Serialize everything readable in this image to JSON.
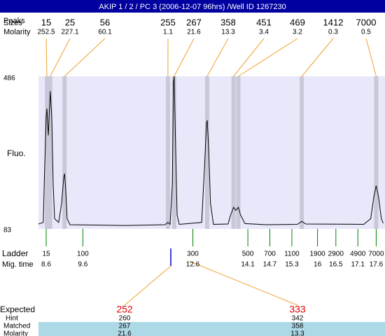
{
  "title": "AKIP 1 / 2 / PC 3 (2006-12-07 96hrs) /Well ID 1267230",
  "chart_data": {
    "type": "line",
    "color": "#000000",
    "x": [
      8.39,
      8.52,
      8.56,
      8.6,
      8.62,
      8.64,
      8.66,
      8.7,
      8.71,
      8.75,
      8.79,
      8.83,
      8.94,
      9.02,
      9.08,
      9.1,
      9.13,
      9.17,
      9.25,
      10.78,
      11.84,
      11.92,
      11.98,
      12.04,
      12.07,
      12.09,
      12.13,
      12.17,
      12.23,
      12.84,
      12.92,
      12.97,
      12.99,
      13.03,
      13.08,
      13.16,
      13.56,
      13.63,
      13.71,
      13.77,
      13.84,
      13.9,
      14.02,
      14.59,
      15.45,
      15.57,
      15.68,
      17.26,
      17.45,
      17.54,
      17.6,
      17.66,
      17.74,
      17.79
    ],
    "values": [
      96,
      100,
      250,
      380,
      401,
      360,
      330,
      420,
      447,
      380,
      200,
      110,
      100,
      150,
      220,
      229,
      190,
      110,
      94,
      92,
      94,
      100,
      95,
      200,
      470,
      486,
      300,
      120,
      95,
      100,
      250,
      360,
      370,
      300,
      150,
      95,
      96,
      120,
      140,
      132,
      140,
      120,
      97,
      94,
      95,
      103,
      96,
      95,
      110,
      170,
      197,
      170,
      110,
      98
    ],
    "xlim": [
      8.39,
      17.84
    ],
    "ylim": [
      83,
      486
    ],
    "yticks": [
      83,
      486
    ],
    "y_label": "Fluo.",
    "peaks": {
      "peaks_label": "Peaks",
      "sizes_label": "Sizes",
      "molarity_label": "Molarity",
      "sizes": [
        15,
        25,
        56,
        255,
        267,
        358,
        451,
        469,
        1412,
        7000
      ],
      "molarity": [
        252.5,
        227.1,
        60.1,
        1.1,
        21.6,
        13.3,
        3.4,
        3.2,
        0.3,
        0.5
      ],
      "times": [
        8.62,
        8.71,
        9.1,
        11.92,
        12.09,
        12.99,
        13.71,
        13.84,
        15.57,
        17.6
      ]
    },
    "ladder": {
      "label": "Ladder",
      "time_label": "Mig. time",
      "sizes": [
        15,
        100,
        300,
        500,
        700,
        1100,
        1900,
        2900,
        4900,
        7000
      ],
      "times": [
        8.6,
        9.6,
        12.6,
        14.1,
        14.7,
        15.3,
        16,
        16.5,
        17.1,
        17.6
      ]
    }
  },
  "expected": {
    "expected_label": "Expected",
    "hint_label": "Hint",
    "matched_label": "Matched",
    "molarity_label": "Molarity",
    "expected": [
      252,
      333
    ],
    "hint": [
      260,
      342
    ],
    "matched": [
      267,
      358
    ],
    "molarity": [
      21.6,
      13.3
    ]
  }
}
